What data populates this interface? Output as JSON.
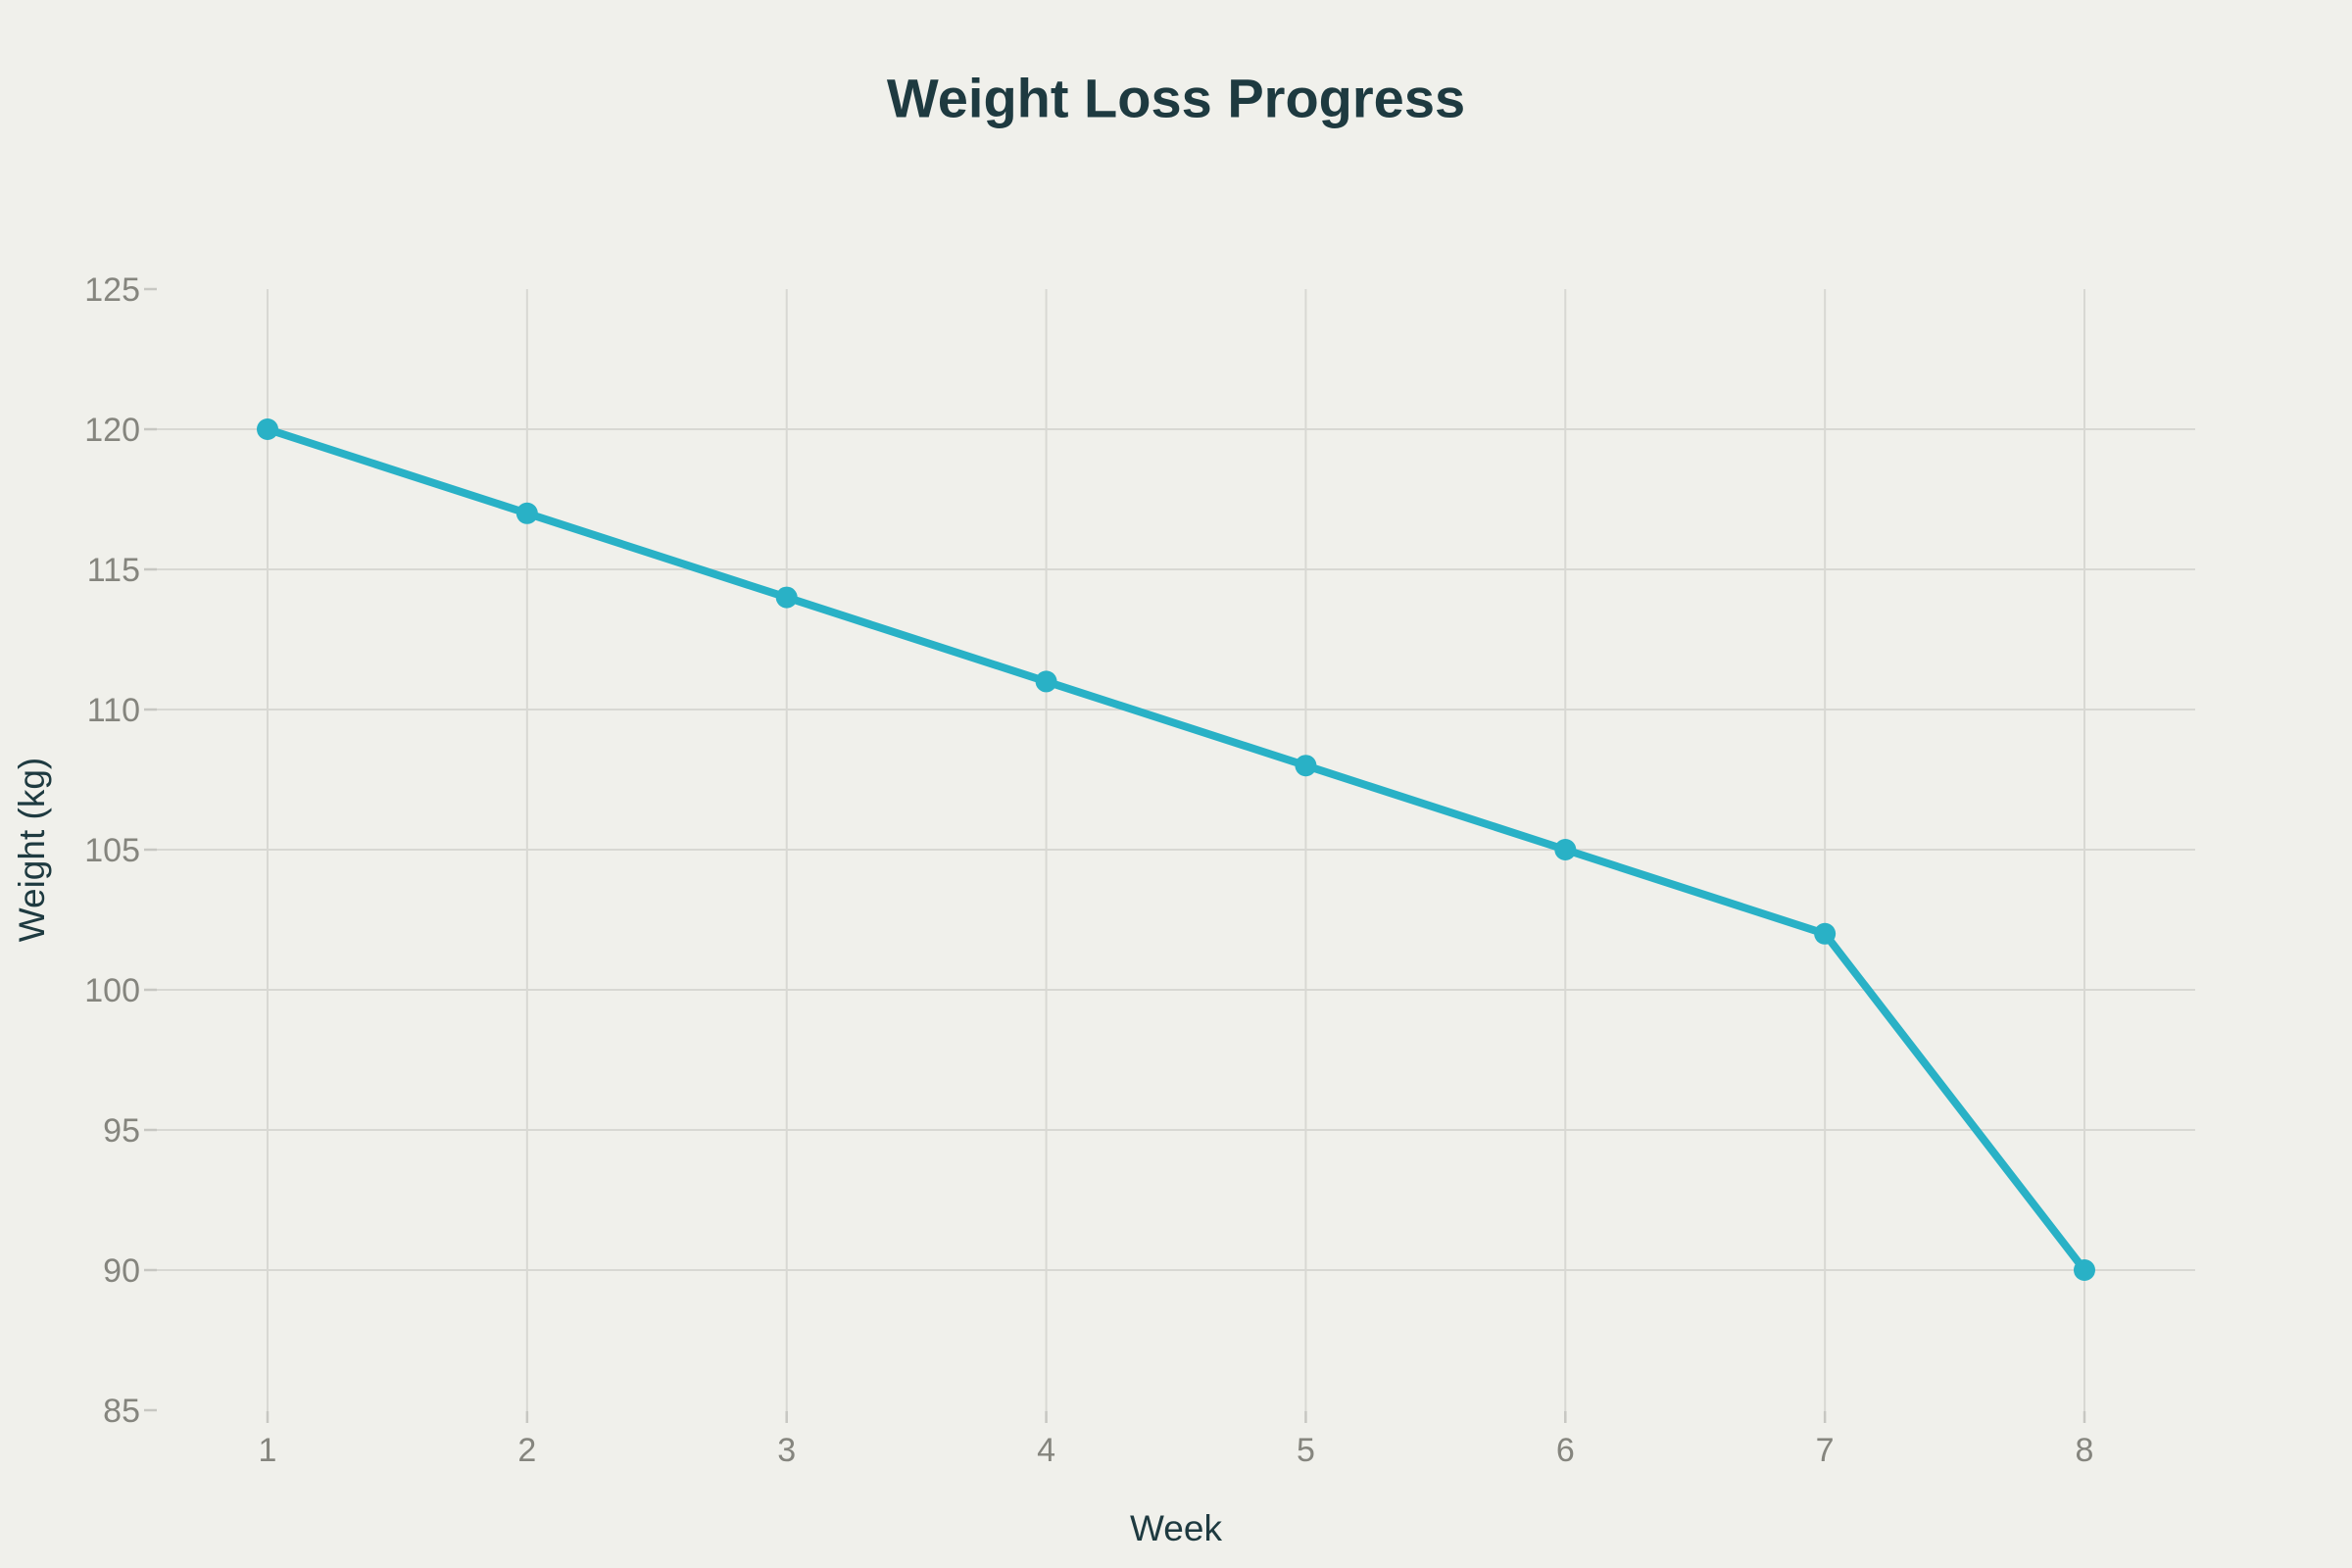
{
  "chart_data": {
    "type": "line",
    "title": "Weight Loss Progress",
    "xlabel": "Week",
    "ylabel": "Weight (kg)",
    "x": [
      1,
      2,
      3,
      4,
      5,
      6,
      7,
      8
    ],
    "series": [
      {
        "name": "Weight",
        "values": [
          120,
          117,
          114,
          111,
          108,
          105,
          102,
          90
        ]
      }
    ],
    "xticks": [
      1,
      2,
      3,
      4,
      5,
      6,
      7,
      8
    ],
    "yticks": [
      85,
      90,
      95,
      100,
      105,
      110,
      115,
      120,
      125
    ],
    "xlim": [
      1,
      8
    ],
    "ylim": [
      85,
      125
    ],
    "grid": true,
    "legend": false,
    "colors": {
      "line": "#29b1c6",
      "marker": "#29b1c6",
      "background": "#f0f0eb",
      "gridline": "#d8d8d3",
      "tick_mark": "#c7c7c2",
      "tick_label": "#85857e",
      "title": "#1e3a40",
      "axis_label": "#1e3a40"
    }
  }
}
